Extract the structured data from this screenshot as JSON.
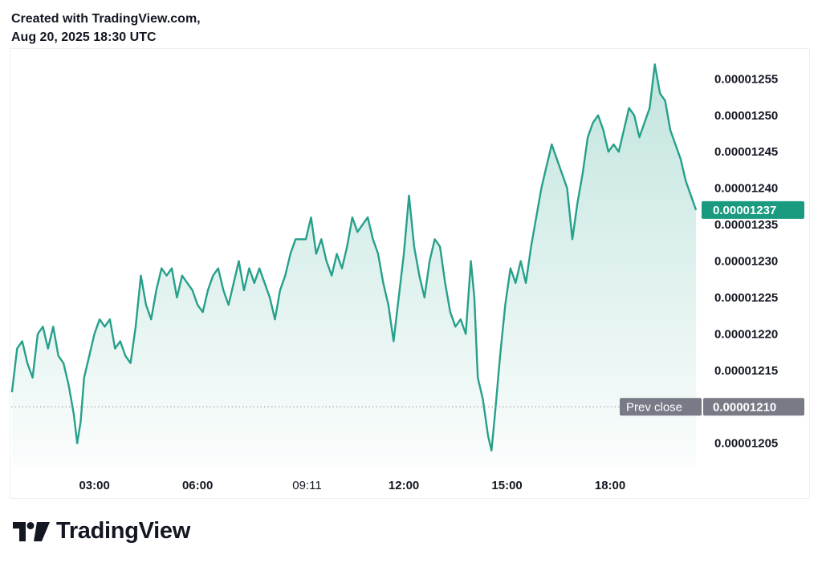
{
  "header": {
    "line1": "Created with TradingView.com,",
    "line2": "Aug 20, 2025 18:30 UTC"
  },
  "brand": {
    "name": "TradingView",
    "logo_icon": "tradingview-logo-icon"
  },
  "colors": {
    "line": "#26a08a",
    "fill": "#26a08a",
    "last_price_bg": "#1a9a7f",
    "prev_close_bg": "#787b86",
    "text": "#131722"
  },
  "chart_data": {
    "type": "area",
    "title": "",
    "xlabel": "",
    "ylabel": "",
    "x_ticks": [
      {
        "label": "03:00",
        "t": 3.0,
        "bold": true
      },
      {
        "label": "06:00",
        "t": 6.0,
        "bold": true
      },
      {
        "label": "09:11",
        "t": 9.1833,
        "bold": false
      },
      {
        "label": "12:00",
        "t": 12.0,
        "bold": true
      },
      {
        "label": "15:00",
        "t": 15.0,
        "bold": true
      },
      {
        "label": "18:00",
        "t": 18.0,
        "bold": true
      }
    ],
    "y_ticks": [
      "0.00001255",
      "0.00001250",
      "0.00001245",
      "0.00001240",
      "0.00001235",
      "0.00001230",
      "0.00001225",
      "0.00001220",
      "0.00001215",
      "0.00001210",
      "0.00001205"
    ],
    "ylim": [
      1.202e-05,
      1.259e-05
    ],
    "xlim": [
      0.58,
      20.52
    ],
    "grid": false,
    "last_price": {
      "label": "0.00001237",
      "value": 1.237e-05
    },
    "prev_close": {
      "label": "Prev close",
      "value_label": "0.00001210",
      "value": 1.21e-05
    },
    "series": [
      {
        "points": [
          [
            0.6,
            1.212e-05
          ],
          [
            0.75,
            1.218e-05
          ],
          [
            0.9,
            1.219e-05
          ],
          [
            1.05,
            1.216e-05
          ],
          [
            1.2,
            1.214e-05
          ],
          [
            1.35,
            1.22e-05
          ],
          [
            1.5,
            1.221e-05
          ],
          [
            1.65,
            1.218e-05
          ],
          [
            1.8,
            1.221e-05
          ],
          [
            1.95,
            1.217e-05
          ],
          [
            2.1,
            1.216e-05
          ],
          [
            2.25,
            1.213e-05
          ],
          [
            2.4,
            1.209e-05
          ],
          [
            2.5,
            1.205e-05
          ],
          [
            2.6,
            1.208e-05
          ],
          [
            2.7,
            1.214e-05
          ],
          [
            2.85,
            1.217e-05
          ],
          [
            3.0,
            1.22e-05
          ],
          [
            3.15,
            1.222e-05
          ],
          [
            3.3,
            1.221e-05
          ],
          [
            3.45,
            1.222e-05
          ],
          [
            3.6,
            1.218e-05
          ],
          [
            3.75,
            1.219e-05
          ],
          [
            3.9,
            1.217e-05
          ],
          [
            4.05,
            1.216e-05
          ],
          [
            4.2,
            1.221e-05
          ],
          [
            4.35,
            1.228e-05
          ],
          [
            4.5,
            1.224e-05
          ],
          [
            4.65,
            1.222e-05
          ],
          [
            4.8,
            1.226e-05
          ],
          [
            4.95,
            1.229e-05
          ],
          [
            5.1,
            1.228e-05
          ],
          [
            5.25,
            1.229e-05
          ],
          [
            5.4,
            1.225e-05
          ],
          [
            5.55,
            1.228e-05
          ],
          [
            5.7,
            1.227e-05
          ],
          [
            5.85,
            1.226e-05
          ],
          [
            6.0,
            1.224e-05
          ],
          [
            6.15,
            1.223e-05
          ],
          [
            6.3,
            1.226e-05
          ],
          [
            6.45,
            1.228e-05
          ],
          [
            6.6,
            1.229e-05
          ],
          [
            6.75,
            1.226e-05
          ],
          [
            6.9,
            1.224e-05
          ],
          [
            7.05,
            1.227e-05
          ],
          [
            7.2,
            1.23e-05
          ],
          [
            7.35,
            1.226e-05
          ],
          [
            7.5,
            1.229e-05
          ],
          [
            7.65,
            1.227e-05
          ],
          [
            7.8,
            1.229e-05
          ],
          [
            7.95,
            1.227e-05
          ],
          [
            8.1,
            1.225e-05
          ],
          [
            8.25,
            1.222e-05
          ],
          [
            8.4,
            1.226e-05
          ],
          [
            8.55,
            1.228e-05
          ],
          [
            8.7,
            1.231e-05
          ],
          [
            8.85,
            1.233e-05
          ],
          [
            9.0,
            1.233e-05
          ],
          [
            9.15,
            1.233e-05
          ],
          [
            9.3,
            1.236e-05
          ],
          [
            9.45,
            1.231e-05
          ],
          [
            9.6,
            1.233e-05
          ],
          [
            9.75,
            1.23e-05
          ],
          [
            9.9,
            1.228e-05
          ],
          [
            10.05,
            1.231e-05
          ],
          [
            10.2,
            1.229e-05
          ],
          [
            10.35,
            1.232e-05
          ],
          [
            10.5,
            1.236e-05
          ],
          [
            10.65,
            1.234e-05
          ],
          [
            10.8,
            1.235e-05
          ],
          [
            10.95,
            1.236e-05
          ],
          [
            11.1,
            1.233e-05
          ],
          [
            11.25,
            1.231e-05
          ],
          [
            11.4,
            1.227e-05
          ],
          [
            11.55,
            1.224e-05
          ],
          [
            11.7,
            1.219e-05
          ],
          [
            11.85,
            1.225e-05
          ],
          [
            12.0,
            1.231e-05
          ],
          [
            12.15,
            1.239e-05
          ],
          [
            12.3,
            1.232e-05
          ],
          [
            12.45,
            1.228e-05
          ],
          [
            12.6,
            1.225e-05
          ],
          [
            12.75,
            1.23e-05
          ],
          [
            12.9,
            1.233e-05
          ],
          [
            13.05,
            1.232e-05
          ],
          [
            13.2,
            1.227e-05
          ],
          [
            13.35,
            1.223e-05
          ],
          [
            13.5,
            1.221e-05
          ],
          [
            13.65,
            1.222e-05
          ],
          [
            13.8,
            1.22e-05
          ],
          [
            13.95,
            1.23e-05
          ],
          [
            14.05,
            1.225e-05
          ],
          [
            14.15,
            1.214e-05
          ],
          [
            14.3,
            1.211e-05
          ],
          [
            14.45,
            1.206e-05
          ],
          [
            14.55,
            1.204e-05
          ],
          [
            14.65,
            1.209e-05
          ],
          [
            14.8,
            1.217e-05
          ],
          [
            14.95,
            1.224e-05
          ],
          [
            15.1,
            1.229e-05
          ],
          [
            15.25,
            1.227e-05
          ],
          [
            15.4,
            1.23e-05
          ],
          [
            15.55,
            1.227e-05
          ],
          [
            15.7,
            1.232e-05
          ],
          [
            15.85,
            1.236e-05
          ],
          [
            16.0,
            1.24e-05
          ],
          [
            16.15,
            1.243e-05
          ],
          [
            16.3,
            1.246e-05
          ],
          [
            16.45,
            1.244e-05
          ],
          [
            16.6,
            1.242e-05
          ],
          [
            16.75,
            1.24e-05
          ],
          [
            16.9,
            1.233e-05
          ],
          [
            17.05,
            1.238e-05
          ],
          [
            17.2,
            1.242e-05
          ],
          [
            17.35,
            1.247e-05
          ],
          [
            17.5,
            1.249e-05
          ],
          [
            17.65,
            1.25e-05
          ],
          [
            17.8,
            1.248e-05
          ],
          [
            17.95,
            1.245e-05
          ],
          [
            18.1,
            1.246e-05
          ],
          [
            18.25,
            1.245e-05
          ],
          [
            18.4,
            1.248e-05
          ],
          [
            18.55,
            1.251e-05
          ],
          [
            18.7,
            1.25e-05
          ],
          [
            18.85,
            1.247e-05
          ],
          [
            19.0,
            1.249e-05
          ],
          [
            19.15,
            1.251e-05
          ],
          [
            19.3,
            1.257e-05
          ],
          [
            19.45,
            1.253e-05
          ],
          [
            19.6,
            1.252e-05
          ],
          [
            19.75,
            1.248e-05
          ],
          [
            19.9,
            1.246e-05
          ],
          [
            20.05,
            1.244e-05
          ],
          [
            20.2,
            1.241e-05
          ],
          [
            20.35,
            1.239e-05
          ],
          [
            20.5,
            1.237e-05
          ]
        ]
      }
    ]
  }
}
